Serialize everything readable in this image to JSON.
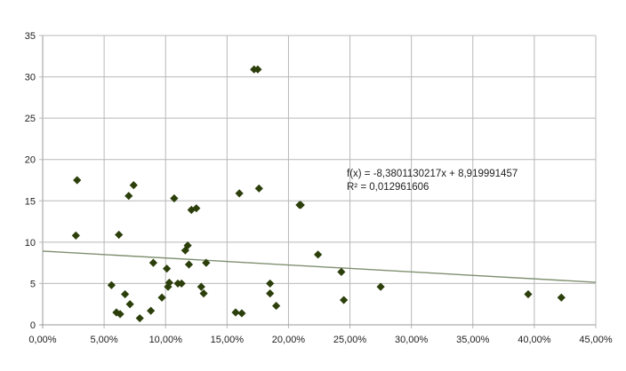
{
  "colors": {
    "marker": "#2c3f0b",
    "trendline": "#7f9070",
    "grid": "#b8b8b8",
    "axis": "#9a9a9a",
    "text": "#222222",
    "background": "#ffffff"
  },
  "chart_data": {
    "type": "scatter",
    "title": "",
    "xlabel": "",
    "ylabel": "",
    "xlim": [
      0,
      0.45
    ],
    "ylim": [
      0,
      35
    ],
    "grid": true,
    "legend": "none",
    "x_ticks": [
      0,
      0.05,
      0.1,
      0.15,
      0.2,
      0.25,
      0.3,
      0.35,
      0.4,
      0.45
    ],
    "x_tick_labels": [
      "0,00%",
      "5,00%",
      "10,00%",
      "15,00%",
      "20,00%",
      "25,00%",
      "30,00%",
      "35,00%",
      "40,00%",
      "45,00%"
    ],
    "y_ticks": [
      0,
      5,
      10,
      15,
      20,
      25,
      30,
      35
    ],
    "y_tick_labels": [
      "0",
      "5",
      "10",
      "15",
      "20",
      "25",
      "30",
      "35"
    ],
    "series": [
      {
        "points": [
          [
            0.028,
            17.5
          ],
          [
            0.027,
            10.8
          ],
          [
            0.056,
            4.8
          ],
          [
            0.06,
            1.5
          ],
          [
            0.062,
            10.9
          ],
          [
            0.063,
            1.3
          ],
          [
            0.067,
            3.7
          ],
          [
            0.07,
            15.6
          ],
          [
            0.071,
            2.5
          ],
          [
            0.074,
            16.9
          ],
          [
            0.079,
            0.8
          ],
          [
            0.088,
            1.7
          ],
          [
            0.09,
            7.5
          ],
          [
            0.097,
            3.3
          ],
          [
            0.101,
            6.8
          ],
          [
            0.102,
            4.6
          ],
          [
            0.103,
            5.1
          ],
          [
            0.107,
            15.3
          ],
          [
            0.11,
            5.0
          ],
          [
            0.113,
            5.0
          ],
          [
            0.116,
            9.0
          ],
          [
            0.118,
            9.6
          ],
          [
            0.119,
            7.3
          ],
          [
            0.121,
            13.9
          ],
          [
            0.125,
            14.1
          ],
          [
            0.129,
            4.6
          ],
          [
            0.131,
            3.8
          ],
          [
            0.133,
            7.5
          ],
          [
            0.157,
            1.5
          ],
          [
            0.16,
            15.9
          ],
          [
            0.162,
            1.4
          ],
          [
            0.172,
            30.9
          ],
          [
            0.175,
            30.9
          ],
          [
            0.176,
            16.5
          ],
          [
            0.185,
            5.0
          ],
          [
            0.185,
            3.8
          ],
          [
            0.19,
            2.3
          ],
          [
            0.209,
            14.5
          ],
          [
            0.21,
            14.5
          ],
          [
            0.224,
            8.5
          ],
          [
            0.243,
            6.4
          ],
          [
            0.245,
            3.0
          ],
          [
            0.275,
            4.6
          ],
          [
            0.395,
            3.7
          ],
          [
            0.422,
            3.3
          ]
        ]
      }
    ],
    "trendline": {
      "type": "linear",
      "slope": -8.3801130217,
      "intercept": 8.919991457
    },
    "annotations": [
      "f(x) = -8,3801130217x + 8,919991457",
      "R² = 0,012961606"
    ]
  }
}
